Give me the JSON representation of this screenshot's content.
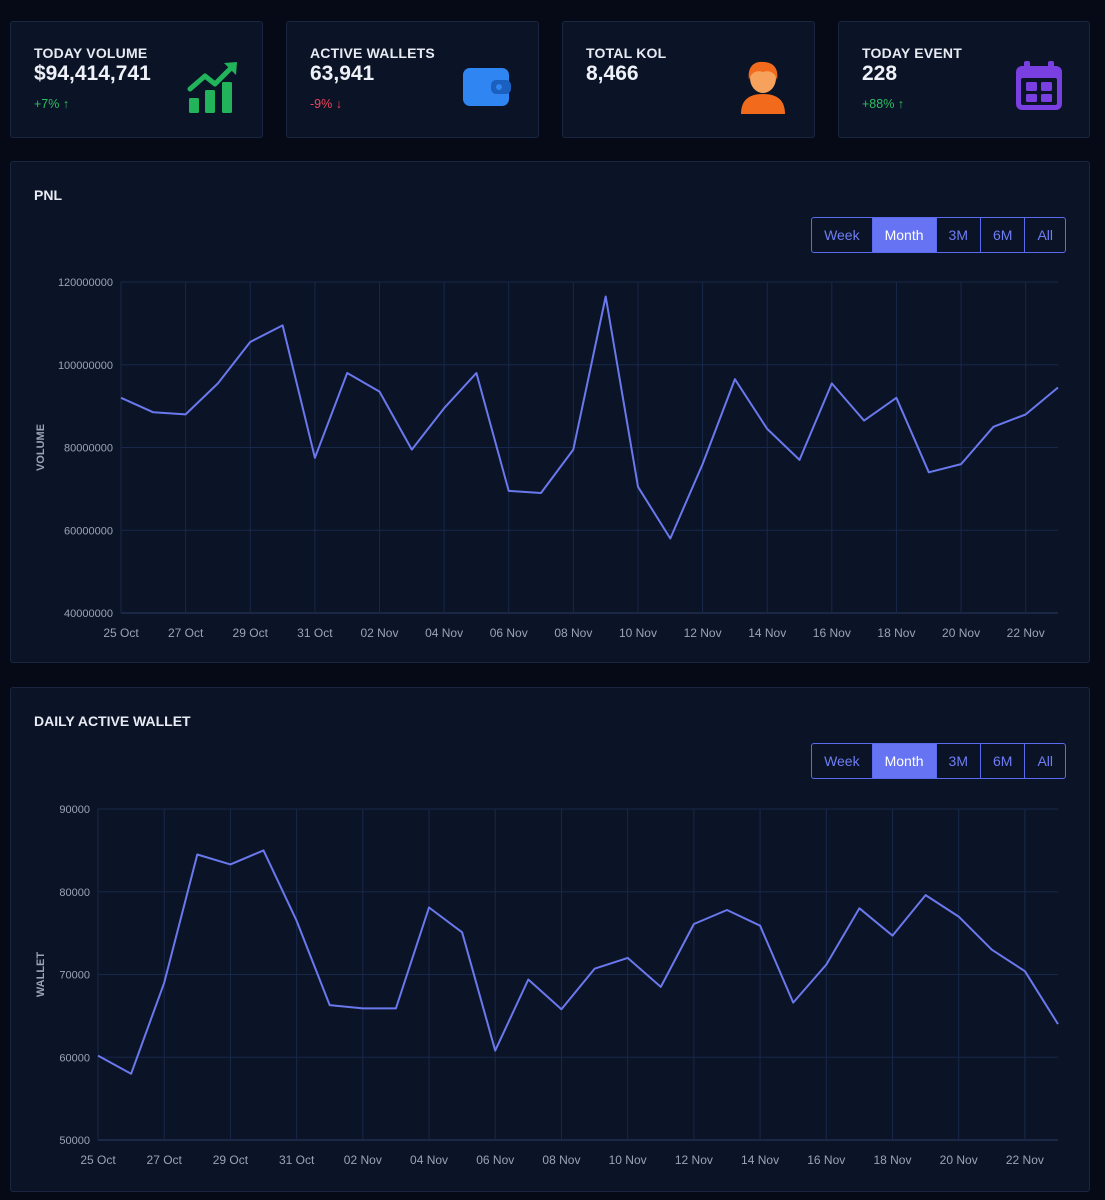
{
  "stats": [
    {
      "title": "TODAY VOLUME",
      "value": "$94,414,741",
      "change": "+7% ↑",
      "direction": "up",
      "icon": "trending-chart-icon",
      "icon_color": "#22b45a"
    },
    {
      "title": "ACTIVE WALLETS",
      "value": "63,941",
      "change": "-9% ↓",
      "direction": "down",
      "icon": "wallet-icon",
      "icon_color": "#2f86f2"
    },
    {
      "title": "TOTAL KOL",
      "value": "8,466",
      "change": "",
      "direction": "none",
      "icon": "user-icon",
      "icon_color": "#f26a1b"
    },
    {
      "title": "TODAY EVENT",
      "value": "228",
      "change": "+88% ↑",
      "direction": "up",
      "icon": "calendar-icon",
      "icon_color": "#7a3fe0"
    }
  ],
  "pnl": {
    "title": "PNL",
    "ranges": [
      "Week",
      "Month",
      "3M",
      "6M",
      "All"
    ],
    "active_range": "Month"
  },
  "wallet": {
    "title": "DAILY ACTIVE WALLET",
    "ranges": [
      "Week",
      "Month",
      "3M",
      "6M",
      "All"
    ],
    "active_range": "Month"
  },
  "chart_data": [
    {
      "type": "line",
      "title": "PNL",
      "ylabel": "VOLUME",
      "xlabel": "",
      "ylim": [
        40000000,
        120000000
      ],
      "yticks": [
        "40000000",
        "60000000",
        "80000000",
        "100000000",
        "120000000"
      ],
      "xticks": [
        "25 Oct",
        "27 Oct",
        "29 Oct",
        "31 Oct",
        "02 Nov",
        "04 Nov",
        "06 Nov",
        "08 Nov",
        "10 Nov",
        "12 Nov",
        "14 Nov",
        "16 Nov",
        "18 Nov",
        "20 Nov",
        "22 Nov"
      ],
      "color": "#6a78ee",
      "x": [
        "25 Oct",
        "26 Oct",
        "27 Oct",
        "28 Oct",
        "29 Oct",
        "30 Oct",
        "31 Oct",
        "01 Nov",
        "02 Nov",
        "03 Nov",
        "04 Nov",
        "05 Nov",
        "06 Nov",
        "07 Nov",
        "08 Nov",
        "09 Nov",
        "10 Nov",
        "11 Nov",
        "12 Nov",
        "13 Nov",
        "14 Nov",
        "15 Nov",
        "16 Nov",
        "17 Nov",
        "18 Nov",
        "19 Nov",
        "20 Nov",
        "21 Nov",
        "22 Nov",
        "23 Nov"
      ],
      "values": [
        92000000,
        88500000,
        88000000,
        95500000,
        105500000,
        109500000,
        77500000,
        98000000,
        93500000,
        79500000,
        89500000,
        98000000,
        69500000,
        69000000,
        79500000,
        116500000,
        70500000,
        58000000,
        76000000,
        96500000,
        84500000,
        77000000,
        95500000,
        86500000,
        92000000,
        74000000,
        76000000,
        85000000,
        88000000,
        94500000
      ]
    },
    {
      "type": "line",
      "title": "DAILY ACTIVE WALLET",
      "ylabel": "WALLET",
      "xlabel": "",
      "ylim": [
        50000,
        90000
      ],
      "yticks": [
        "50000",
        "60000",
        "70000",
        "80000",
        "90000"
      ],
      "xticks": [
        "25 Oct",
        "27 Oct",
        "29 Oct",
        "31 Oct",
        "02 Nov",
        "04 Nov",
        "06 Nov",
        "08 Nov",
        "10 Nov",
        "12 Nov",
        "14 Nov",
        "16 Nov",
        "18 Nov",
        "20 Nov",
        "22 Nov"
      ],
      "color": "#6a78ee",
      "x": [
        "25 Oct",
        "26 Oct",
        "27 Oct",
        "28 Oct",
        "29 Oct",
        "30 Oct",
        "31 Oct",
        "01 Nov",
        "02 Nov",
        "03 Nov",
        "04 Nov",
        "05 Nov",
        "06 Nov",
        "07 Nov",
        "08 Nov",
        "09 Nov",
        "10 Nov",
        "11 Nov",
        "12 Nov",
        "13 Nov",
        "14 Nov",
        "15 Nov",
        "16 Nov",
        "17 Nov",
        "18 Nov",
        "19 Nov",
        "20 Nov",
        "21 Nov",
        "22 Nov",
        "23 Nov"
      ],
      "values": [
        60200,
        58000,
        69000,
        84500,
        83300,
        85000,
        76500,
        66300,
        65900,
        65900,
        78100,
        75100,
        60800,
        69400,
        65800,
        70700,
        72000,
        68500,
        76100,
        77800,
        75900,
        66600,
        71200,
        78000,
        74700,
        79600,
        77000,
        73000,
        70400,
        64000
      ]
    }
  ]
}
